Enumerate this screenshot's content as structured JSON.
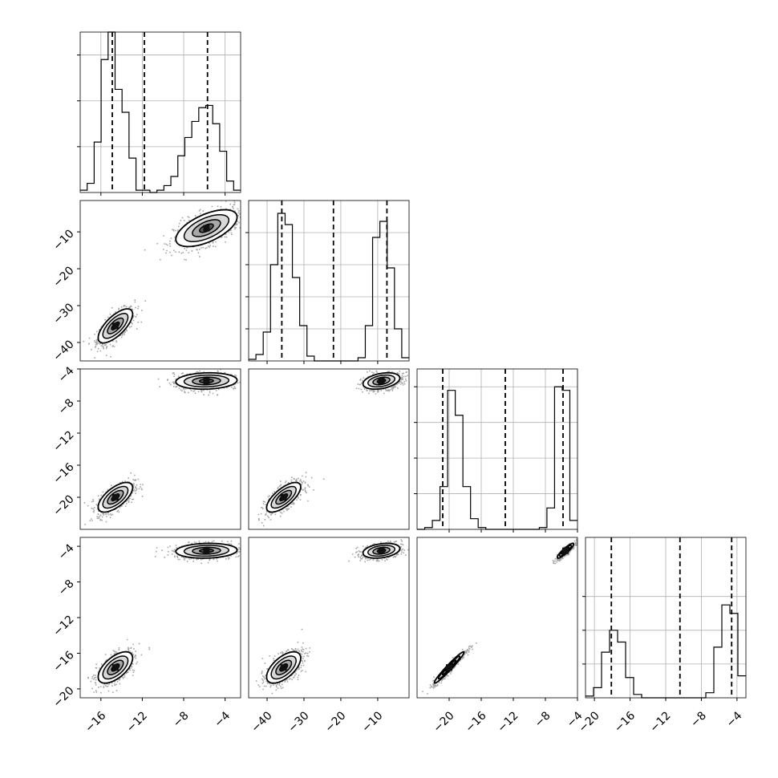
{
  "chart_data": {
    "type": "corner",
    "grid": true,
    "parameters": [
      {
        "axis_range": [
          -18.0,
          -2.5
        ],
        "ticks": [
          {
            "value": -16,
            "label": "−16"
          },
          {
            "value": -12,
            "label": "−12"
          },
          {
            "value": -8,
            "label": "−8"
          },
          {
            "value": -4,
            "label": "−4"
          }
        ],
        "quantiles": [
          -14.9,
          -11.8,
          -5.7
        ],
        "hist_max": 70,
        "hist_ticks": [
          20,
          40,
          60
        ],
        "histogram": [
          1,
          4,
          22,
          58,
          70,
          45,
          35,
          15,
          1,
          1,
          0,
          1,
          3,
          7,
          16,
          24,
          31,
          37,
          38,
          30,
          18,
          5,
          1
        ]
      },
      {
        "axis_range": [
          -45.0,
          -1.5
        ],
        "ticks": [
          {
            "value": -40,
            "label": "−40"
          },
          {
            "value": -30,
            "label": "−30"
          },
          {
            "value": -20,
            "label": "−20"
          },
          {
            "value": -10,
            "label": "−10"
          }
        ],
        "quantiles": [
          -36.0,
          -22.0,
          -7.5
        ],
        "hist_max": 100,
        "hist_ticks": [
          20,
          40,
          60,
          80
        ],
        "histogram": [
          1,
          4,
          18,
          60,
          92,
          85,
          52,
          22,
          3,
          0,
          0,
          0,
          0,
          0,
          0,
          2,
          22,
          77,
          87,
          58,
          20,
          2
        ]
      },
      {
        "axis_range": [
          -24.0,
          -4.0
        ],
        "ticks": [
          {
            "value": -20,
            "label": "−20"
          },
          {
            "value": -16,
            "label": "−16"
          },
          {
            "value": -12,
            "label": "−12"
          },
          {
            "value": -8,
            "label": "−8"
          },
          {
            "value": -4,
            "label": "−4"
          }
        ],
        "quantiles": [
          -20.8,
          -13.0,
          -5.8
        ],
        "hist_max": 90,
        "hist_ticks": [
          20,
          40,
          60,
          80
        ],
        "histogram": [
          0,
          1,
          5,
          24,
          78,
          64,
          24,
          6,
          1,
          0,
          0,
          0,
          0,
          0,
          0,
          0,
          1,
          12,
          80,
          78,
          5
        ]
      },
      {
        "axis_range": [
          -21.0,
          -3.0
        ],
        "ticks": [
          {
            "value": -20,
            "label": "−20"
          },
          {
            "value": -16,
            "label": "−16"
          },
          {
            "value": -12,
            "label": "−12"
          },
          {
            "value": -8,
            "label": "−8"
          },
          {
            "value": -4,
            "label": "−4"
          }
        ],
        "quantiles": [
          -18.1,
          -10.4,
          -4.6
        ],
        "hist_max": 95,
        "hist_ticks": [
          20,
          40,
          60
        ],
        "histogram": [
          1,
          6,
          27,
          40,
          33,
          12,
          2,
          0,
          0,
          0,
          0,
          0,
          0,
          0,
          0,
          3,
          30,
          55,
          50,
          13
        ]
      }
    ],
    "joint": [
      {
        "row": 1,
        "col": 0,
        "blobs": [
          {
            "cx": -14.6,
            "cy": -35.5,
            "sx": 0.9,
            "sy": 2.5,
            "rho": 0.7,
            "w": 0.5
          },
          {
            "cx": -5.8,
            "cy": -9.0,
            "sx": 1.6,
            "sy": 2.7,
            "rho": 0.6,
            "w": 0.5
          }
        ]
      },
      {
        "row": 2,
        "col": 0,
        "blobs": [
          {
            "cx": -14.6,
            "cy": -20.0,
            "sx": 0.9,
            "sy": 1.0,
            "rho": 0.65,
            "w": 0.5
          },
          {
            "cx": -5.8,
            "cy": -5.5,
            "sx": 1.6,
            "sy": 0.55,
            "rho": 0.1,
            "w": 0.5
          }
        ]
      },
      {
        "row": 2,
        "col": 1,
        "blobs": [
          {
            "cx": -35.5,
            "cy": -20.0,
            "sx": 2.5,
            "sy": 1.0,
            "rho": 0.7,
            "w": 0.5
          },
          {
            "cx": -9.0,
            "cy": -5.5,
            "sx": 2.7,
            "sy": 0.55,
            "rho": 0.35,
            "w": 0.5
          }
        ]
      },
      {
        "row": 3,
        "col": 0,
        "blobs": [
          {
            "cx": -14.6,
            "cy": -17.6,
            "sx": 0.9,
            "sy": 0.95,
            "rho": 0.6,
            "w": 0.5
          },
          {
            "cx": -5.8,
            "cy": -4.5,
            "sx": 1.6,
            "sy": 0.45,
            "rho": 0.1,
            "w": 0.5
          }
        ]
      },
      {
        "row": 3,
        "col": 1,
        "blobs": [
          {
            "cx": -35.5,
            "cy": -17.6,
            "sx": 2.5,
            "sy": 0.95,
            "rho": 0.6,
            "w": 0.5
          },
          {
            "cx": -9.0,
            "cy": -4.5,
            "sx": 2.7,
            "sy": 0.45,
            "rho": 0.3,
            "w": 0.5
          }
        ]
      },
      {
        "row": 3,
        "col": 2,
        "blobs": [
          {
            "cx": -20.0,
            "cy": -17.6,
            "sx": 1.0,
            "sy": 0.95,
            "rho": 0.97,
            "w": 0.5
          },
          {
            "cx": -5.5,
            "cy": -4.5,
            "sx": 0.55,
            "sy": 0.45,
            "rho": 0.9,
            "w": 0.5
          }
        ]
      }
    ]
  }
}
